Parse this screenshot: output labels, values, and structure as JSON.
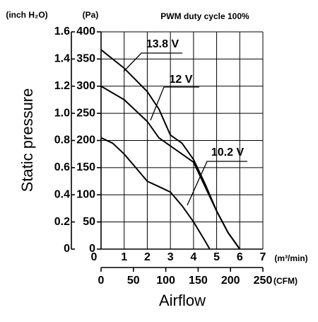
{
  "chart_data": {
    "type": "line",
    "title": "PWM duty cycle 100%",
    "y_unit": "(Pa)",
    "y2_unit": "(inch H₂O)",
    "x_unit": "(m³/min)",
    "x2_unit": "(CFM)",
    "y_label": "Static pressure",
    "x_label": "Airflow",
    "xlim": [
      0,
      7
    ],
    "xticks": [
      0,
      1,
      2,
      3,
      4,
      5,
      6,
      7
    ],
    "x2lim": [
      0,
      250
    ],
    "x2ticks": [
      0,
      50,
      100,
      150,
      200,
      250
    ],
    "ylim": [
      0,
      400
    ],
    "yticks": [
      0,
      50,
      100,
      150,
      200,
      250,
      300,
      350,
      400
    ],
    "y2lim": [
      0,
      1.6
    ],
    "y2ticks": [
      0,
      0.2,
      0.4,
      0.6,
      0.8,
      {
        "value": 1,
        "label": "1.0"
      },
      1.2,
      1.4,
      1.6
    ],
    "grid": true,
    "series": [
      {
        "name": "13.8 V",
        "color": "#000000",
        "x": [
          0,
          1,
          2,
          2.5,
          3,
          3.5,
          4,
          4.5,
          5,
          5.5,
          6
        ],
        "values": [
          367,
          333,
          290,
          258,
          210,
          195,
          165,
          120,
          70,
          30,
          0
        ]
      },
      {
        "name": "12 V",
        "color": "#000000",
        "x": [
          0,
          1,
          2,
          2.5,
          3,
          3.5,
          4,
          4.5,
          5,
          5.5,
          6
        ],
        "values": [
          300,
          275,
          235,
          205,
          190,
          175,
          160,
          115,
          70,
          30,
          0
        ]
      },
      {
        "name": "10.2 V",
        "color": "#000000",
        "x": [
          0,
          0.5,
          1,
          1.5,
          2,
          2.5,
          3,
          3.5,
          4,
          4.5,
          4.7
        ],
        "values": [
          205,
          195,
          175,
          150,
          125,
          115,
          105,
          80,
          50,
          15,
          0
        ]
      }
    ]
  }
}
